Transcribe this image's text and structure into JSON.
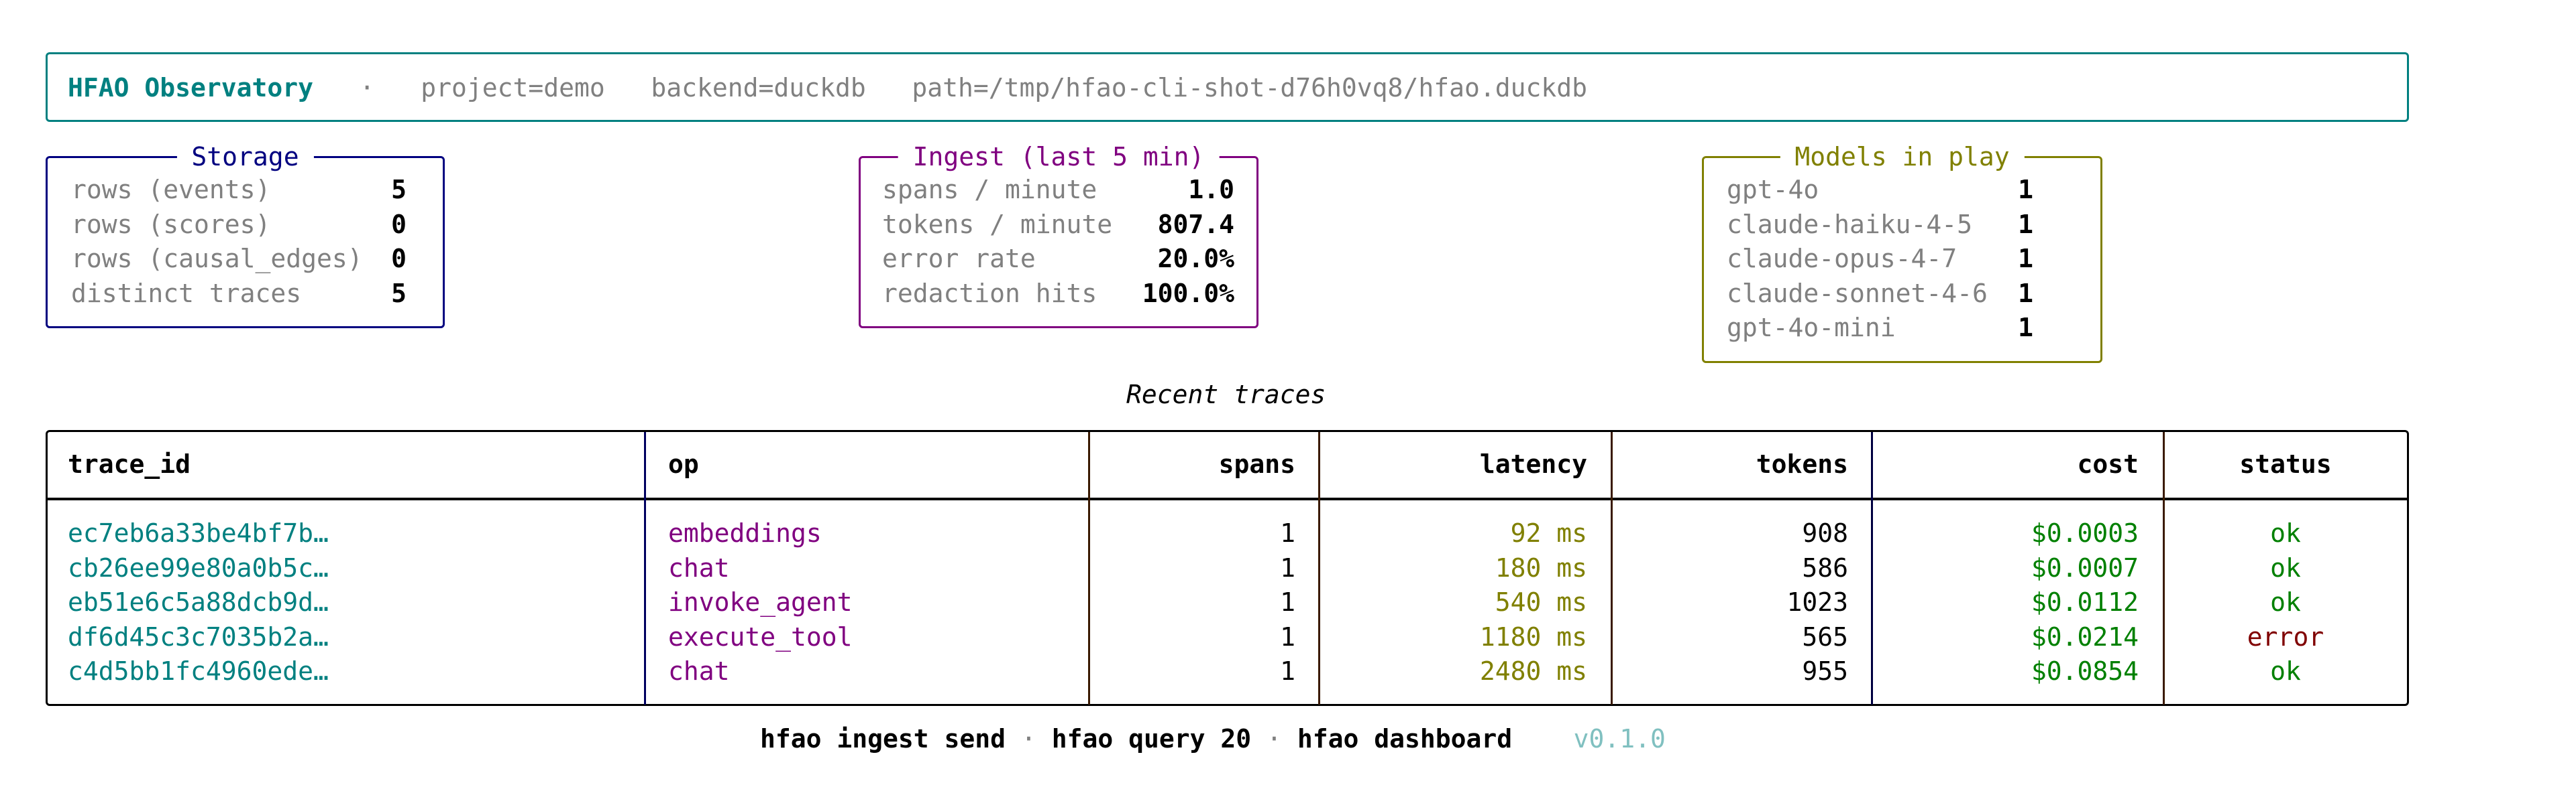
{
  "header": {
    "title": "HFAO Observatory",
    "separator": "·",
    "project": "project=demo",
    "backend": "backend=duckdb",
    "path": "path=/tmp/hfao-cli-shot-d76h0vq8/hfao.duckdb"
  },
  "storage": {
    "title": "Storage",
    "rows": [
      {
        "label": "rows (events)",
        "value": "5"
      },
      {
        "label": "rows (scores)",
        "value": "0"
      },
      {
        "label": "rows (causal_edges)",
        "value": "0"
      },
      {
        "label": "distinct traces",
        "value": "5"
      }
    ]
  },
  "ingest": {
    "title": "Ingest (last 5 min)",
    "rows": [
      {
        "label": "spans / minute",
        "value": "1.0"
      },
      {
        "label": "tokens / minute",
        "value": "807.4"
      },
      {
        "label": "error rate",
        "value": "20.0%"
      },
      {
        "label": "redaction hits",
        "value": "100.0%"
      }
    ]
  },
  "models": {
    "title": "Models in play",
    "rows": [
      {
        "label": "gpt-4o",
        "value": "1"
      },
      {
        "label": "claude-haiku-4-5",
        "value": "1"
      },
      {
        "label": "claude-opus-4-7",
        "value": "1"
      },
      {
        "label": "claude-sonnet-4-6",
        "value": "1"
      },
      {
        "label": "gpt-4o-mini",
        "value": "1"
      }
    ]
  },
  "traces": {
    "title": "Recent traces",
    "columns": [
      "trace_id",
      "op",
      "spans",
      "latency",
      "tokens",
      "cost",
      "status"
    ],
    "rows": [
      [
        "ec7eb6a33be4bf7b…",
        "embeddings",
        "1",
        "92 ms",
        "908",
        "$0.0003",
        "ok"
      ],
      [
        "cb26ee99e80a0b5c…",
        "chat",
        "1",
        "180 ms",
        "586",
        "$0.0007",
        "ok"
      ],
      [
        "eb51e6c5a88dcb9d…",
        "invoke_agent",
        "1",
        "540 ms",
        "1023",
        "$0.0112",
        "ok"
      ],
      [
        "df6d45c3c7035b2a…",
        "execute_tool",
        "1",
        "1180 ms",
        "565",
        "$0.0214",
        "error"
      ],
      [
        "c4d5bb1fc4960ede…",
        "chat",
        "1",
        "2480 ms",
        "955",
        "$0.0854",
        "ok"
      ]
    ]
  },
  "footer": {
    "commands": [
      "hfao ingest send",
      "hfao query 20",
      "hfao dashboard"
    ],
    "separator": "·",
    "version": "v0.1.0"
  },
  "colors": {
    "brand": "#008080",
    "storage": "#000080",
    "ingest": "#800080",
    "models": "#808000",
    "ok": "#008000",
    "error": "#800000",
    "muted": "#808080"
  }
}
